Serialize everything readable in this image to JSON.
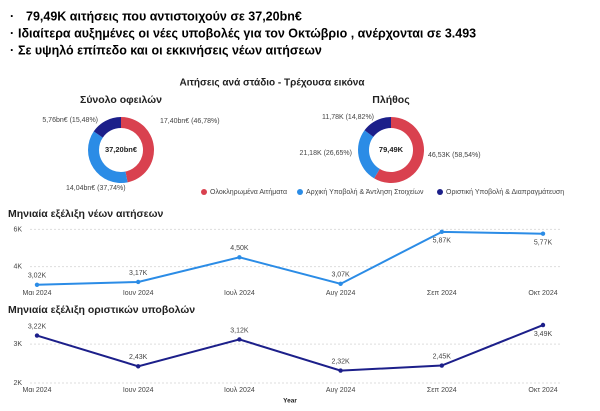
{
  "bullets": [
    "79,49K  αιτήσεις που αντιστοιχούν σε  37,20bn€",
    "Ιδιαίτερα αυξημένες οι νέες υποβολές για τον Οκτώβριο , ανέρχονται σε 3.493",
    "Σε υψηλό επίπεδο και οι εκκινήσεις νέων αιτήσεων"
  ],
  "section_title": "Αιτήσεις ανά στάδιο - Τρέχουσα εικόνα",
  "legend": [
    {
      "name": "Ολοκληρωμένα Αιτήματα",
      "color": "#d9414f"
    },
    {
      "name": "Αρχική Υποβολή & Άντληση Στοιχείων",
      "color": "#2b8ce6"
    },
    {
      "name": "Οριστική Υποβολή & Διαπραγμάτευση",
      "color": "#1c1f8a"
    }
  ],
  "chart_data": [
    {
      "type": "donut",
      "title": "Σύνολο οφειλών",
      "center_label": "37,20bn€",
      "values": [
        17.4,
        14.04,
        5.76
      ],
      "percentages": [
        46.78,
        37.74,
        15.48
      ],
      "value_labels": [
        "17,40bn€ (46,78%)",
        "14,04bn€ (37,74%)",
        "5,76bn€ (15,48%)"
      ]
    },
    {
      "type": "donut",
      "title": "Πλήθος",
      "center_label": "79,49K",
      "values": [
        46530,
        21180,
        11780
      ],
      "percentages": [
        58.54,
        26.65,
        14.82
      ],
      "value_labels": [
        "46,53K (58,54%)",
        "21,18K (26,65%)",
        "11,78K (14,82%)"
      ]
    },
    {
      "type": "line",
      "title": "Μηνιαία εξέλιξη νέων αιτήσεων",
      "categories": [
        "Μαι 2024",
        "Ιουν 2024",
        "Ιουλ 2024",
        "Αυγ 2024",
        "Σεπ 2024",
        "Οκτ 2024"
      ],
      "series": [
        {
          "color": "#2b8ce6",
          "values": [
            3020,
            3170,
            4500,
            3070,
            5870,
            5770
          ],
          "value_labels": [
            "3,02K",
            "3,17K",
            "4,50K",
            "3,07K",
            "5,87K",
            "5,77K"
          ]
        }
      ],
      "ylim": [
        2900,
        6400
      ],
      "yticks": [
        {
          "value": 4000,
          "label": "4K"
        },
        {
          "value": 6000,
          "label": "6K"
        }
      ],
      "grid": true
    },
    {
      "type": "line",
      "title": "Μηνιαία εξέλιξη οριστικών υποβολών",
      "x_label": "Year",
      "categories": [
        "Μαι 2024",
        "Ιουν 2024",
        "Ιουλ 2024",
        "Αυγ 2024",
        "Σεπ 2024",
        "Οκτ 2024"
      ],
      "series": [
        {
          "color": "#1c1f8a",
          "values": [
            3220,
            2430,
            3120,
            2320,
            2450,
            3490
          ],
          "value_labels": [
            "3,22K",
            "2,43K",
            "3,12K",
            "2,32K",
            "2,45K",
            "3,49K"
          ]
        }
      ],
      "ylim": [
        1950,
        3670
      ],
      "yticks": [
        {
          "value": 2000,
          "label": "2K"
        },
        {
          "value": 3000,
          "label": "3K"
        }
      ],
      "grid": true
    }
  ]
}
